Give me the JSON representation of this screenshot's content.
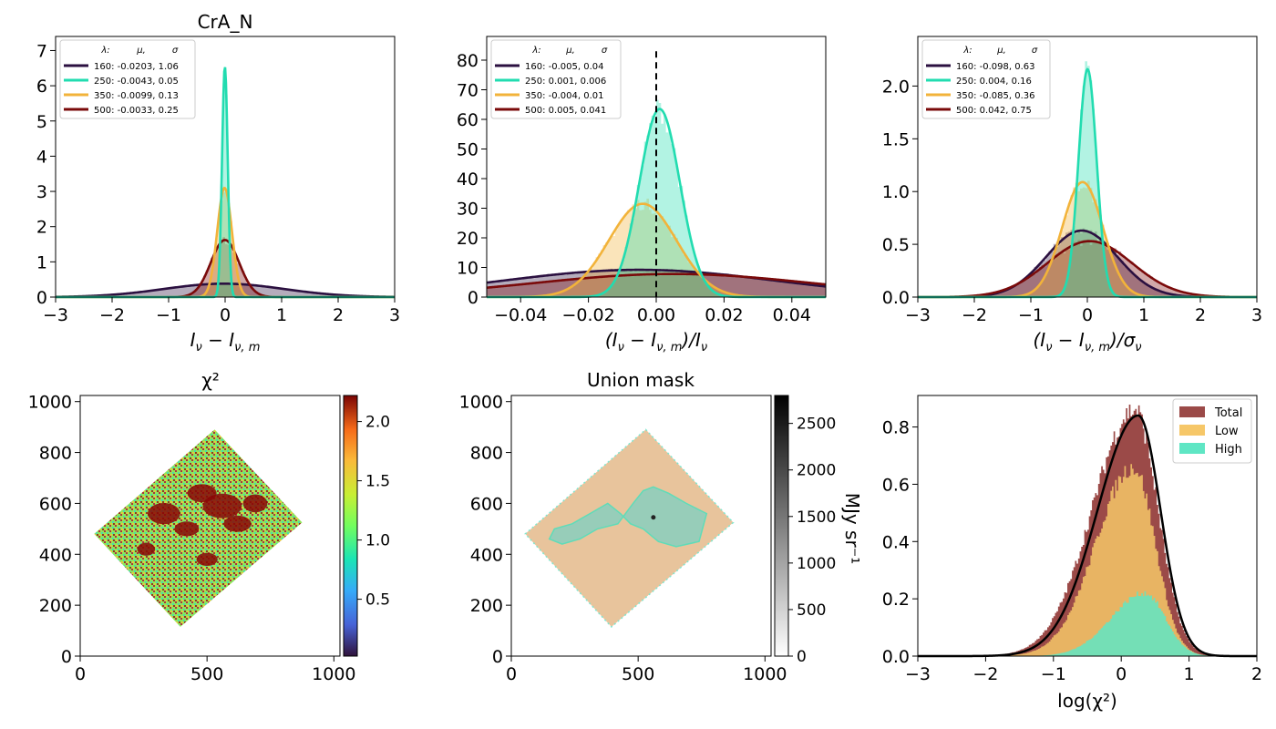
{
  "colors": {
    "s160": "#2b1040",
    "s250": "#22dcb0",
    "s350": "#f2b33a",
    "s500": "#7a0a0a",
    "total": "#9b4a48",
    "low": "#f6c768",
    "high": "#5fe6c4",
    "mask_fill": "#e8c49c",
    "mask_high": "#97cdb9"
  },
  "chart_data": [
    {
      "type": "area",
      "panel": "residual_hist",
      "title": "CrA_N",
      "xlabel": "I_ν − I_ν,m",
      "ylabel": "",
      "xlim": [
        -3,
        3
      ],
      "ylim": [
        0,
        7.4
      ],
      "xticks": [
        "−3",
        "−2",
        "−1",
        "0",
        "1",
        "2",
        "3"
      ],
      "xtick_values": [
        -3,
        -2,
        -1,
        0,
        1,
        2,
        3
      ],
      "yticks": [
        "0",
        "1",
        "2",
        "3",
        "4",
        "5",
        "6",
        "7"
      ],
      "ytick_values": [
        0,
        1,
        2,
        3,
        4,
        5,
        6,
        7
      ],
      "legend": {
        "placement": "top-left",
        "header": [
          "λ:",
          "μ,",
          "σ"
        ],
        "entries": [
          "160: -0.0203,  1.06",
          "250: -0.0043,  0.05",
          "350: -0.0099,  0.13",
          "500: -0.0033,  0.25"
        ]
      },
      "series": [
        {
          "color_key": "s160",
          "mu": -0.0203,
          "sigma": 1.06
        },
        {
          "color_key": "s250",
          "mu": -0.0043,
          "sigma": 0.05
        },
        {
          "color_key": "s350",
          "mu": -0.0099,
          "sigma": 0.13
        },
        {
          "color_key": "s500",
          "mu": -0.0033,
          "sigma": 0.25
        }
      ],
      "peaks": [
        0.38,
        6.55,
        3.1,
        1.62
      ]
    },
    {
      "type": "area",
      "panel": "relative_hist",
      "title": "",
      "xlabel": "(I_ν − I_ν,m)/I_ν",
      "ylabel": "",
      "xlim": [
        -0.05,
        0.05
      ],
      "ylim": [
        0,
        88
      ],
      "xticks": [
        "−0.04",
        "−0.02",
        "0.00",
        "0.02",
        "0.04"
      ],
      "xtick_values": [
        -0.04,
        -0.02,
        0,
        0.02,
        0.04
      ],
      "yticks": [
        "0",
        "10",
        "20",
        "30",
        "40",
        "50",
        "60",
        "70",
        "80"
      ],
      "ytick_values": [
        0,
        10,
        20,
        30,
        40,
        50,
        60,
        70,
        80
      ],
      "vline": 0,
      "legend": {
        "placement": "top-left",
        "header": [
          "λ:",
          "μ,",
          "σ"
        ],
        "entries": [
          "160: -0.005,  0.04",
          "250: 0.001,  0.006",
          "350: -0.004,  0.01",
          "500: 0.005,  0.041"
        ]
      },
      "series": [
        {
          "color_key": "s160",
          "mu": -0.005,
          "sigma": 0.04
        },
        {
          "color_key": "s250",
          "mu": 0.001,
          "sigma": 0.006
        },
        {
          "color_key": "s350",
          "mu": -0.004,
          "sigma": 0.01
        },
        {
          "color_key": "s500",
          "mu": 0.005,
          "sigma": 0.041
        }
      ],
      "peaks": [
        9.2,
        63.5,
        31.5,
        7.8
      ]
    },
    {
      "type": "area",
      "panel": "normalized_hist",
      "title": "",
      "xlabel": "(I_ν − I_ν,m)/σ_ν",
      "ylabel": "",
      "xlim": [
        -3,
        3
      ],
      "ylim": [
        0,
        2.47
      ],
      "xticks": [
        "−3",
        "−2",
        "−1",
        "0",
        "1",
        "2",
        "3"
      ],
      "xtick_values": [
        -3,
        -2,
        -1,
        0,
        1,
        2,
        3
      ],
      "yticks": [
        "0.0",
        "0.5",
        "1.0",
        "1.5",
        "2.0"
      ],
      "ytick_values": [
        0,
        0.5,
        1.0,
        1.5,
        2.0
      ],
      "legend": {
        "placement": "top-left",
        "header": [
          "λ:",
          "μ,",
          "σ"
        ],
        "entries": [
          "160: -0.098,  0.63",
          "250: 0.004,  0.16",
          "350: -0.085,  0.36",
          "500: 0.042,  0.75"
        ]
      },
      "series": [
        {
          "color_key": "s160",
          "mu": -0.098,
          "sigma": 0.63
        },
        {
          "color_key": "s250",
          "mu": 0.004,
          "sigma": 0.16
        },
        {
          "color_key": "s350",
          "mu": -0.085,
          "sigma": 0.36
        },
        {
          "color_key": "s500",
          "mu": 0.042,
          "sigma": 0.75
        }
      ],
      "peaks": [
        0.63,
        2.16,
        1.09,
        0.53
      ]
    },
    {
      "type": "heatmap",
      "panel": "chi2_map",
      "title": "χ²",
      "xlim": [
        0,
        1024
      ],
      "ylim": [
        0,
        1024
      ],
      "xticks": [
        "0",
        "500",
        "1000"
      ],
      "xtick_values": [
        0,
        500,
        1000
      ],
      "yticks": [
        "0",
        "200",
        "400",
        "600",
        "800",
        "1000"
      ],
      "ytick_values": [
        0,
        200,
        400,
        600,
        800,
        1000
      ],
      "colorbar": {
        "cmap": "turbo",
        "range": [
          0.02,
          2.22
        ],
        "ticks": [
          "0.5",
          "1.0",
          "1.5",
          "2.0"
        ],
        "tick_values": [
          0.5,
          1.0,
          1.5,
          2.0
        ]
      },
      "region_corners": [
        [
          530,
          890
        ],
        [
          875,
          525
        ],
        [
          395,
          115
        ],
        [
          55,
          480
        ]
      ]
    },
    {
      "type": "heatmap",
      "panel": "union_mask",
      "title": "Union mask",
      "xlim": [
        0,
        1024
      ],
      "ylim": [
        0,
        1024
      ],
      "xticks": [
        "0",
        "500",
        "1000"
      ],
      "xtick_values": [
        0,
        500,
        1000
      ],
      "yticks": [
        "0",
        "200",
        "400",
        "600",
        "800",
        "1000"
      ],
      "ytick_values": [
        0,
        200,
        400,
        600,
        800,
        1000
      ],
      "colorbar": {
        "cmap": "gray_r",
        "range": [
          0,
          2800
        ],
        "label": "MJy sr⁻¹",
        "ticks": [
          "0",
          "500",
          "1000",
          "1500",
          "2000",
          "2500"
        ],
        "tick_values": [
          0,
          500,
          1000,
          1500,
          2000,
          2500
        ]
      },
      "region_corners": [
        [
          530,
          890
        ],
        [
          875,
          525
        ],
        [
          395,
          115
        ],
        [
          55,
          480
        ]
      ]
    },
    {
      "type": "area",
      "panel": "chi2_hist",
      "title": "",
      "xlabel": "log(χ²)",
      "ylabel": "",
      "xlim": [
        -3,
        2
      ],
      "ylim": [
        0,
        0.91
      ],
      "xticks": [
        "−3",
        "−2",
        "−1",
        "0",
        "1",
        "2"
      ],
      "xtick_values": [
        -3,
        -2,
        -1,
        0,
        1,
        2
      ],
      "yticks": [
        "0.0",
        "0.2",
        "0.4",
        "0.6",
        "0.8"
      ],
      "ytick_values": [
        0,
        0.2,
        0.4,
        0.6,
        0.8
      ],
      "legend": {
        "placement": "top-right",
        "entries": [
          "Total",
          "Low",
          "High"
        ]
      },
      "series": [
        {
          "name": "Total",
          "color_key": "total",
          "peak_x": 0.2,
          "peak_y": 0.86
        },
        {
          "name": "Low",
          "color_key": "low",
          "peak_x": 0.18,
          "peak_y": 0.66
        },
        {
          "name": "High",
          "color_key": "high",
          "peak_x": 0.35,
          "peak_y": 0.22
        }
      ],
      "model_line_peak": [
        0.25,
        0.84
      ]
    }
  ]
}
